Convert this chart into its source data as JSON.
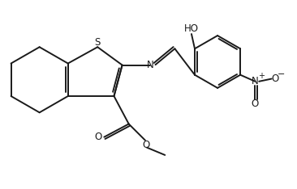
{
  "bg_color": "#ffffff",
  "line_color": "#1a1a1a",
  "line_width": 1.4,
  "figsize": [
    3.66,
    2.34
  ],
  "dpi": 100,
  "xlim": [
    0.5,
    9.5
  ],
  "ylim": [
    0.3,
    6.0
  ]
}
